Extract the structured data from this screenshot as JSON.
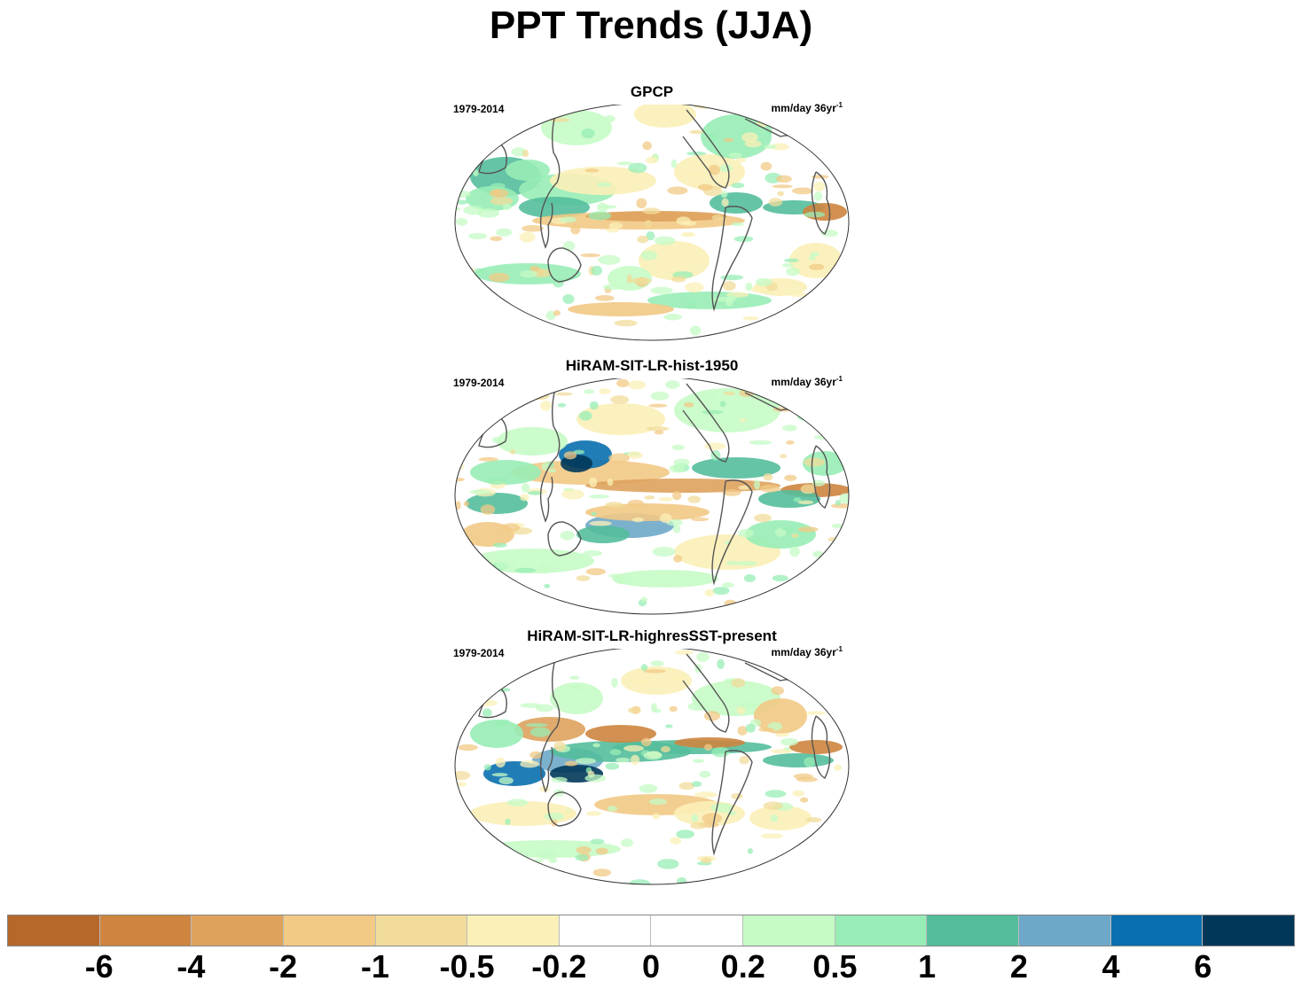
{
  "title": "PPT Trends (JJA)",
  "panels": [
    {
      "title": "GPCP",
      "period": "1979-2014",
      "units": "mm/day 36yr",
      "units_sup": "-1"
    },
    {
      "title": "HiRAM-SIT-LR-hist-1950",
      "period": "1979-2014",
      "units": "mm/day 36yr",
      "units_sup": "-1"
    },
    {
      "title": "HiRAM-SIT-LR-highresSST-present",
      "period": "1979-2014",
      "units": "mm/day 36yr",
      "units_sup": "-1"
    }
  ],
  "colorbar": {
    "labels": [
      "-6",
      "-4",
      "-2",
      "-1",
      "-0.5",
      "-0.2",
      "0",
      "0.2",
      "0.5",
      "1",
      "2",
      "4",
      "6"
    ],
    "colors": [
      "#b5682a",
      "#cd853f",
      "#dea25d",
      "#f2c985",
      "#f1dc9b",
      "#fbf0b7",
      "#ffffff",
      "#ffffff",
      "#c6fbc6",
      "#98edb6",
      "#54be9c",
      "#6ea8c8",
      "#096fae",
      "#01385a"
    ]
  },
  "chart_data": {
    "type": "heatmap",
    "title": "PPT Trends (JJA)",
    "projection": "Robinson (global, centered on Pacific)",
    "variable": "Precipitation trend",
    "units": "mm/day 36yr-1",
    "period": "1979-2014",
    "season": "JJA",
    "panels": [
      "GPCP",
      "HiRAM-SIT-LR-hist-1950",
      "HiRAM-SIT-LR-highresSST-present"
    ],
    "contour_levels": [
      -6,
      -4,
      -2,
      -1,
      -0.5,
      -0.2,
      0,
      0.2,
      0.5,
      1,
      2,
      4,
      6
    ],
    "legend_position": "bottom"
  }
}
